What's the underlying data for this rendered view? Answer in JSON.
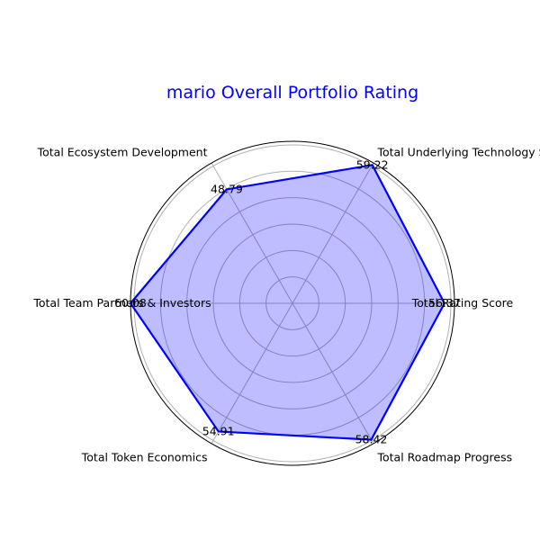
{
  "chart_data": {
    "type": "radar",
    "title": "mario Overall Portfolio Rating",
    "categories": [
      "Total Rating Score",
      "Total Underlying Technology Security",
      "Total Ecosystem Development",
      "Total Team Partners & Investors",
      "Total Token Economics",
      "Total Roadmap Progress"
    ],
    "values": [
      56.37,
      59.22,
      48.79,
      60.08,
      54.91,
      58.42
    ],
    "value_labels": [
      "56.37",
      "59.22",
      "48.79",
      "60.08",
      "54.91",
      "58.42"
    ],
    "rlim": [
      0,
      60.08
    ],
    "grid": true,
    "colors": {
      "line": "#0000ff",
      "fill": "#0000ff",
      "title": "#0000ff"
    }
  }
}
